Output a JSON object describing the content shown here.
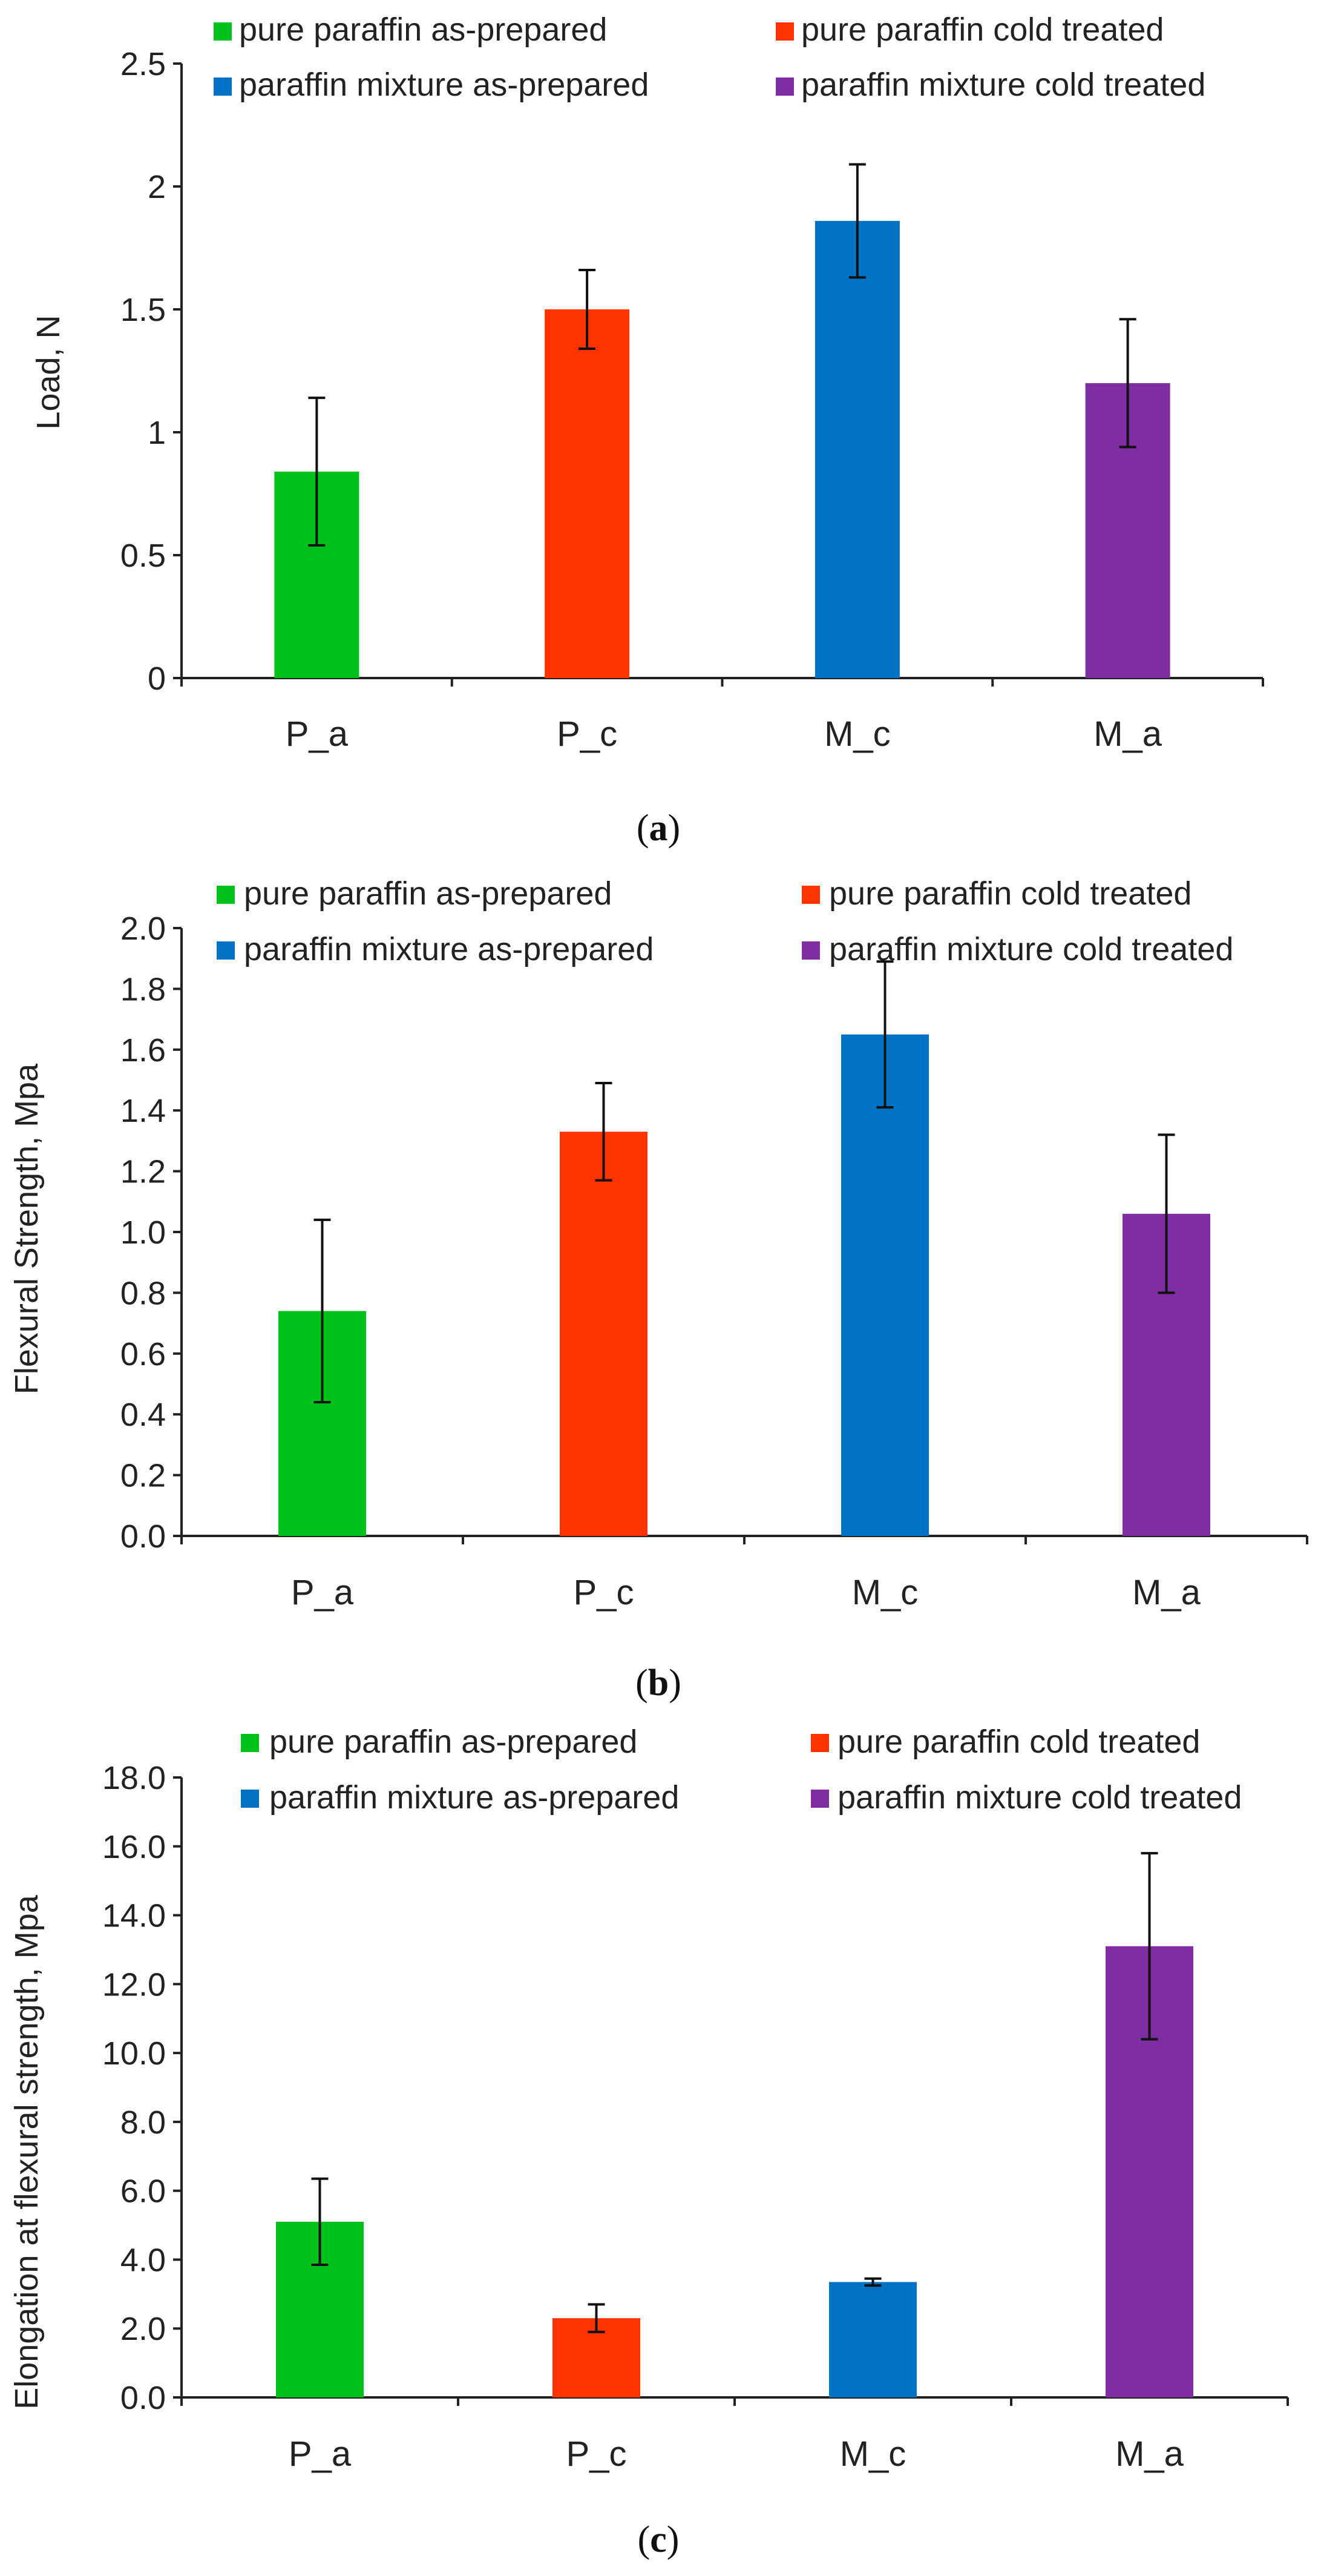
{
  "legend": [
    {
      "label": "pure paraffin as-prepared",
      "color": "#00c21b"
    },
    {
      "label": "pure paraffin cold treated",
      "color": "#ff3300"
    },
    {
      "label": "paraffin mixture as-prepared",
      "color": "#0072c6"
    },
    {
      "label": "paraffin mixture cold treated",
      "color": "#7e2ea0"
    }
  ],
  "chart_data": [
    {
      "type": "bar",
      "caption": {
        "open": "(",
        "letter": "a",
        "close": ")"
      },
      "categories": [
        "P_a",
        "P_c",
        "M_c",
        "M_a"
      ],
      "colors": [
        "#00c21b",
        "#ff3300",
        "#0072c6",
        "#7e2ea0"
      ],
      "values": [
        0.84,
        1.5,
        1.86,
        1.2
      ],
      "errors": [
        0.3,
        0.16,
        0.23,
        0.26
      ],
      "ylabel": "Load, N",
      "ylim": [
        0,
        2.5
      ],
      "yticks": [
        "0",
        "0.5",
        "1",
        "1.5",
        "2",
        "2.5"
      ],
      "grid": false,
      "legend_position": "top"
    },
    {
      "type": "bar",
      "caption": {
        "open": "(",
        "letter": "b",
        "close": ")"
      },
      "categories": [
        "P_a",
        "P_c",
        "M_c",
        "M_a"
      ],
      "colors": [
        "#00c21b",
        "#ff3300",
        "#0072c6",
        "#7e2ea0"
      ],
      "values": [
        0.74,
        1.33,
        1.65,
        1.06
      ],
      "errors": [
        0.3,
        0.16,
        0.24,
        0.26
      ],
      "ylabel": "Flexural Strength, Mpa",
      "ylim": [
        0,
        2.0
      ],
      "yticks": [
        "0.0",
        "0.2",
        "0.4",
        "0.6",
        "0.8",
        "1.0",
        "1.2",
        "1.4",
        "1.6",
        "1.8",
        "2.0"
      ],
      "grid": false,
      "legend_position": "top"
    },
    {
      "type": "bar",
      "caption": {
        "open": "(",
        "letter": "c",
        "close": ")"
      },
      "categories": [
        "P_a",
        "P_c",
        "M_c",
        "M_a"
      ],
      "colors": [
        "#00c21b",
        "#ff3300",
        "#0072c6",
        "#7e2ea0"
      ],
      "values": [
        5.1,
        2.3,
        3.35,
        13.1
      ],
      "errors": [
        1.25,
        0.4,
        0.1,
        2.7
      ],
      "ylabel": "Elongation at flexural strength, Mpa",
      "ylim": [
        0,
        18
      ],
      "yticks": [
        "0.0",
        "2.0",
        "4.0",
        "6.0",
        "8.0",
        "10.0",
        "12.0",
        "14.0",
        "16.0",
        "18.0"
      ],
      "grid": false,
      "legend_position": "top"
    }
  ]
}
